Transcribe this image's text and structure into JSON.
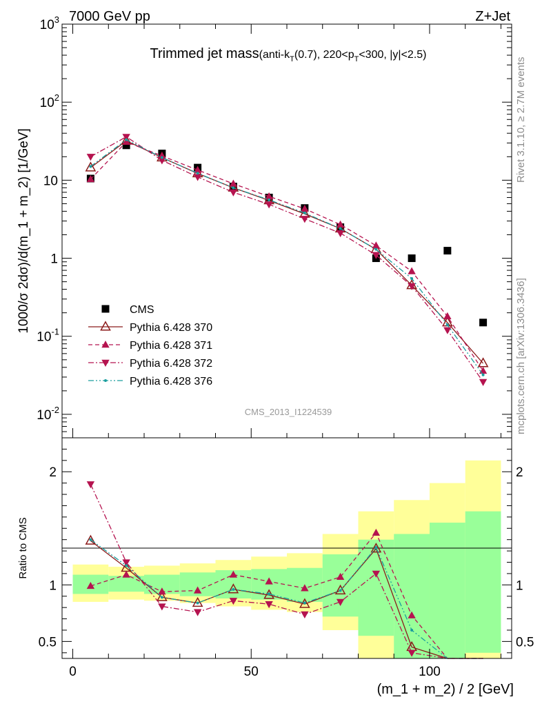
{
  "header": {
    "left": "7000 GeV pp",
    "right": "Z+Jet",
    "title_main": "Trimmed jet mass",
    "title_detail": {
      "p1": "(anti-k",
      "s1": "T",
      "p2": "(0.7), 220<p",
      "s2": "T",
      "p3": "<300, |y|<2.5)"
    },
    "analysis_id": "CMS_2013_I1224539",
    "side_rivet": "Rivet 3.1.10, ≥ 2.7M events",
    "side_mcplots": "mcplots.cern.ch [arXiv:1306.3436]"
  },
  "chart_data": [
    {
      "type": "scatter",
      "panel": "main",
      "ylabel": "1000/σ 2dσ)/d(m_1 + m_2) [1/GeV]",
      "yscale": "log",
      "ylim": [
        0.005,
        1000
      ],
      "xlim": [
        -3,
        123
      ],
      "x": [
        5,
        15,
        25,
        35,
        45,
        55,
        65,
        75,
        85,
        95,
        105,
        115
      ],
      "y_tick_labels": [
        "10^-2",
        "10^-1",
        "1",
        "10",
        "10^2",
        "10^3"
      ],
      "series": [
        {
          "name": "CMS",
          "color": "#000000",
          "marker": "square",
          "line": "none",
          "values": [
            10.5,
            28,
            22,
            14.5,
            8.3,
            6.0,
            4.4,
            2.5,
            1.0,
            1.0,
            1.25,
            0.15
          ]
        },
        {
          "name": "Pythia 6.428 370",
          "color": "#8b1a1a",
          "marker": "open-triangle-up",
          "line": "solid",
          "values": [
            14.5,
            32,
            19.5,
            12.2,
            8.0,
            5.5,
            3.7,
            2.4,
            1.3,
            0.45,
            0.15,
            0.045
          ]
        },
        {
          "name": "Pythia 6.428 371",
          "color": "#b5134f",
          "marker": "triangle-up",
          "line": "dashed",
          "values": [
            10.3,
            31,
            20.5,
            13.5,
            9.0,
            6.2,
            4.3,
            2.7,
            1.45,
            0.68,
            0.18,
            0.036
          ]
        },
        {
          "name": "Pythia 6.428 372",
          "color": "#b5134f",
          "marker": "triangle-down",
          "line": "dashdot",
          "values": [
            20,
            36,
            18,
            11,
            7.0,
            4.9,
            3.2,
            2.1,
            1.1,
            0.44,
            0.12,
            0.026
          ]
        },
        {
          "name": "Pythia 6.428 376",
          "color": "#1a9e9e",
          "marker": "dot",
          "line": "dashdotdot",
          "values": [
            15,
            33,
            19.5,
            12.3,
            8.0,
            5.6,
            3.8,
            2.4,
            1.3,
            0.55,
            0.14,
            0.032
          ]
        }
      ]
    },
    {
      "type": "line",
      "panel": "ratio",
      "ylabel": "Ratio to CMS",
      "xlabel": "(m_1 + m_2) / 2 [GeV]",
      "ylim": [
        0.35,
        2.3
      ],
      "xlim": [
        -3,
        123
      ],
      "x_ticks": [
        0,
        50,
        100
      ],
      "y_ticks": [
        0.5,
        1,
        2
      ],
      "x": [
        5,
        15,
        25,
        35,
        45,
        55,
        65,
        75,
        85,
        95,
        105,
        115
      ],
      "bin_edges": [
        0,
        10,
        20,
        30,
        40,
        50,
        60,
        70,
        80,
        90,
        100,
        110,
        120
      ],
      "band_inner": {
        "color": "#99ff99",
        "low": [
          0.92,
          0.94,
          0.92,
          0.9,
          0.88,
          0.87,
          0.85,
          0.72,
          0.55,
          0.35,
          0.35,
          0.4
        ],
        "high": [
          1.09,
          1.08,
          1.09,
          1.11,
          1.13,
          1.14,
          1.15,
          1.27,
          1.4,
          1.45,
          1.55,
          1.65
        ]
      },
      "band_outer": {
        "color": "#ffff99",
        "low": [
          0.85,
          0.87,
          0.86,
          0.84,
          0.81,
          0.78,
          0.76,
          0.6,
          0.35,
          0.35,
          0.35,
          0.35
        ],
        "high": [
          1.18,
          1.16,
          1.17,
          1.19,
          1.22,
          1.25,
          1.28,
          1.45,
          1.65,
          1.75,
          1.9,
          2.1
        ]
      },
      "series": [
        {
          "name": "Pythia 6.428 370",
          "values": [
            1.39,
            1.15,
            0.89,
            0.84,
            0.96,
            0.91,
            0.83,
            0.95,
            1.32,
            0.45,
            0.35,
            0.35
          ]
        },
        {
          "name": "Pythia 6.428 371",
          "values": [
            0.99,
            1.09,
            0.94,
            0.95,
            1.09,
            1.03,
            0.97,
            1.07,
            1.46,
            0.73,
            0.35,
            0.35
          ]
        },
        {
          "name": "Pythia 6.428 372",
          "values": [
            1.89,
            1.2,
            0.81,
            0.76,
            0.86,
            0.83,
            0.74,
            0.85,
            1.1,
            0.4,
            0.35,
            0.35
          ]
        },
        {
          "name": "Pythia 6.428 376",
          "values": [
            1.4,
            1.17,
            0.89,
            0.84,
            0.96,
            0.92,
            0.84,
            0.95,
            1.33,
            0.6,
            0.35,
            0.35
          ]
        }
      ]
    }
  ]
}
